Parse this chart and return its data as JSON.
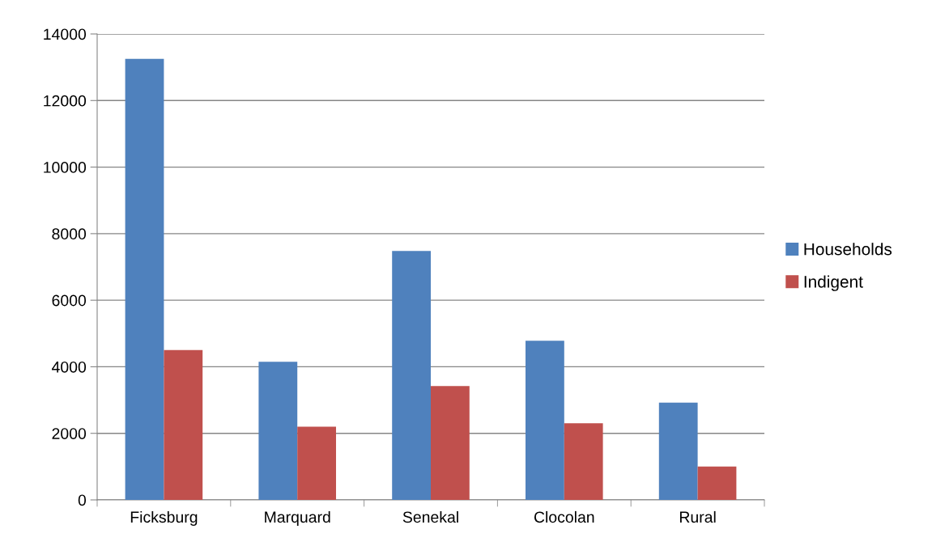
{
  "chart_data": {
    "type": "bar",
    "categories": [
      "Ficksburg",
      "Marquard",
      "Senekal",
      "Clocolan",
      "Rural"
    ],
    "series": [
      {
        "name": "Households",
        "color": "#4f81bd",
        "values": [
          13250,
          4150,
          7480,
          4780,
          2920
        ]
      },
      {
        "name": "Indigent",
        "color": "#c0504d",
        "values": [
          4500,
          2200,
          3420,
          2300,
          1000
        ]
      }
    ],
    "ylim": [
      0,
      14000
    ],
    "yticks": [
      0,
      2000,
      4000,
      6000,
      8000,
      10000,
      12000,
      14000
    ],
    "grid": "y",
    "legend": "right"
  }
}
